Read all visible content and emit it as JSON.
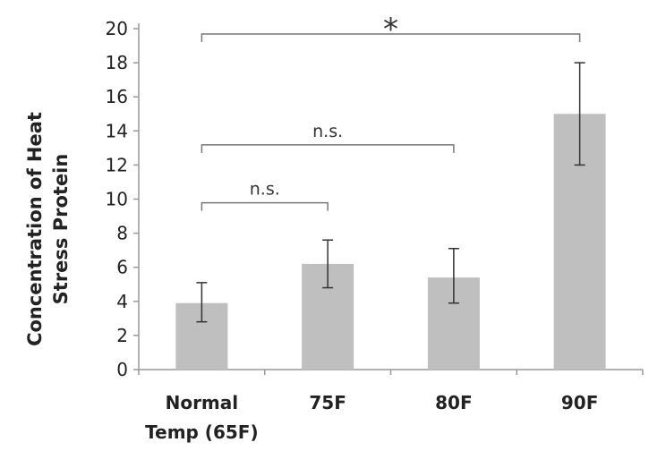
{
  "chart_data": {
    "type": "bar",
    "title": "",
    "xlabel": "",
    "ylabel_lines": [
      "Concentration of Heat",
      "Stress Protein"
    ],
    "categories": [
      [
        "Normal",
        "Temp (65F)"
      ],
      [
        "75F"
      ],
      [
        "80F"
      ],
      [
        "90F"
      ]
    ],
    "values": [
      3.9,
      6.2,
      5.4,
      15.0
    ],
    "error": {
      "low": [
        2.8,
        4.8,
        3.9,
        12.0
      ],
      "high": [
        5.1,
        7.6,
        7.1,
        18.0
      ]
    },
    "ylim": [
      0,
      20
    ],
    "yticks": [
      0,
      2,
      4,
      6,
      8,
      10,
      12,
      14,
      16,
      18,
      20
    ],
    "ytick_labels": [
      "0",
      "2",
      "4",
      "6",
      "8",
      "10",
      "12",
      "14",
      "16",
      "18",
      "20"
    ],
    "grid": false,
    "legend": "none",
    "bar_color": "#bfbfbf",
    "error_color": "#333333",
    "axis_color": "#999999",
    "bracket_color": "#777777",
    "significance": [
      {
        "from": 0,
        "to": 1,
        "level": 10.1,
        "label": "n.s."
      },
      {
        "from": 0,
        "to": 2,
        "level": 13.5,
        "label": "n.s."
      },
      {
        "from": 0,
        "to": 3,
        "level": 20.0,
        "label": "*"
      }
    ]
  }
}
